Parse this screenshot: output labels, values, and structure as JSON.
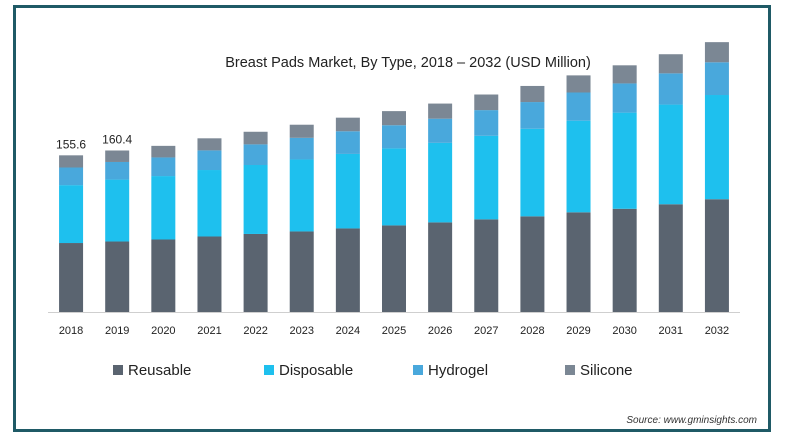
{
  "chart_data": {
    "type": "bar",
    "stacked": true,
    "title": "Breast Pads Market, By Type, 2018 – 2032 (USD Million)",
    "xlabel": "",
    "ylabel": "",
    "categories": [
      "2018",
      "2019",
      "2020",
      "2021",
      "2022",
      "2023",
      "2024",
      "2025",
      "2026",
      "2027",
      "2028",
      "2029",
      "2030",
      "2031",
      "2032"
    ],
    "series": [
      {
        "name": "Reusable",
        "color": "#5a6470",
        "values": [
          68.5,
          70.0,
          72.0,
          75.0,
          77.5,
          80.0,
          83.0,
          86.0,
          89.0,
          92.0,
          95.0,
          99.0,
          102.5,
          107.0,
          112.0
        ]
      },
      {
        "name": "Disposable",
        "color": "#1ec0ee",
        "values": [
          57.5,
          61.5,
          63.0,
          66.0,
          68.5,
          71.5,
          74.0,
          76.5,
          79.0,
          83.0,
          87.0,
          91.0,
          95.5,
          99.0,
          103.5
        ]
      },
      {
        "name": "Hydrogel",
        "color": "#49a8dc",
        "values": [
          17.5,
          17.5,
          18.5,
          19.5,
          20.5,
          21.5,
          22.5,
          23.0,
          24.0,
          25.5,
          26.5,
          28.0,
          29.0,
          31.0,
          32.5
        ]
      },
      {
        "name": "Silicone",
        "color": "#7b8794",
        "values": [
          12.1,
          11.4,
          11.5,
          12.0,
          12.5,
          13.0,
          13.5,
          14.0,
          15.0,
          15.5,
          16.0,
          17.0,
          18.0,
          19.0,
          20.0
        ]
      }
    ],
    "data_labels": [
      {
        "category": "2018",
        "text": "155.6"
      },
      {
        "category": "2019",
        "text": "160.4"
      }
    ],
    "ylim": [
      0,
      290
    ],
    "grid": false,
    "y_axis_visible": false,
    "legend_position": "bottom"
  },
  "source_text": "Source: www.gminsights.com"
}
